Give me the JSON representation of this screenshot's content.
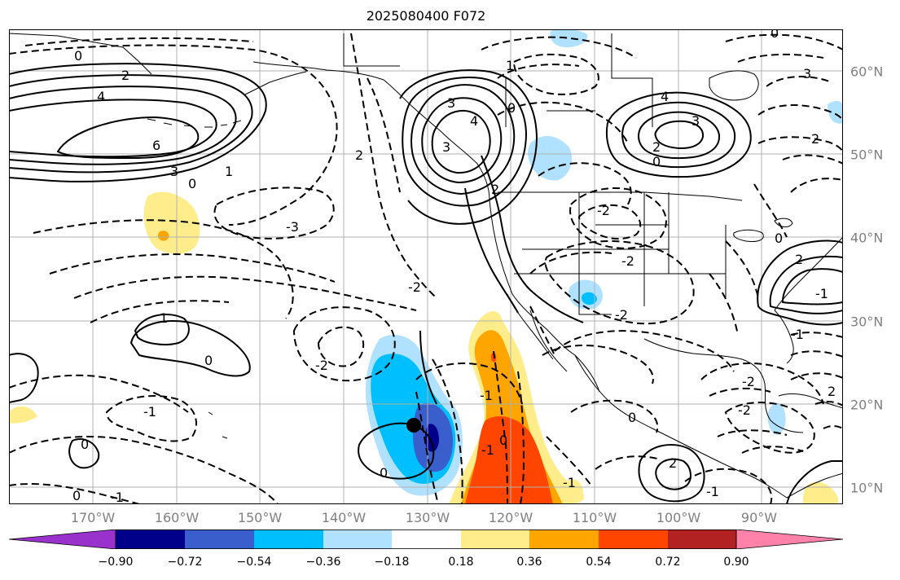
{
  "title": "2025080400 F072",
  "lon_labels": [
    "170°W",
    "160°W",
    "150°W",
    "140°W",
    "130°W",
    "120°W",
    "110°W",
    "100°W",
    "90°W"
  ],
  "lat_labels": [
    "60°N",
    "50°N",
    "40°N",
    "30°N",
    "20°N",
    "10°N"
  ],
  "colorbar": {
    "labels": [
      "−0.90",
      "−0.72",
      "−0.54",
      "−0.36",
      "−0.18",
      "0.18",
      "0.36",
      "0.54",
      "0.72",
      "0.90"
    ],
    "colors": [
      "#9932cc",
      "#00008b",
      "#3a5fcd",
      "#00bfff",
      "#b0e2ff",
      "#ffffff",
      "#ffec8b",
      "#ffa500",
      "#ff4500",
      "#b22222",
      "#ff82ab"
    ]
  },
  "fill_colors": {
    "neg_strong": "#00008b",
    "neg_mid": "#3a5fcd",
    "neg": "#00bfff",
    "neg_light": "#b0e2ff",
    "pos_light": "#ffec8b",
    "pos": "#ffa500",
    "pos_mid": "#ff4500"
  },
  "contour_labels": {
    "l1": "0",
    "l2": "2",
    "l3": "4",
    "l4": "6",
    "l5": "3",
    "l6": "0",
    "l7": "1",
    "l8": "-3",
    "l9": "2",
    "l10": "3",
    "l11": "4",
    "l12": "3",
    "l13": "0",
    "l14": "1",
    "l15": "3",
    "l16": "4",
    "l17": "2",
    "l18": "2",
    "l19": "0",
    "l20": "3",
    "l21": "2",
    "l22": "-2",
    "l23": "-2",
    "l24": "-2",
    "l25": "1",
    "l26": "0",
    "l27": "-2",
    "l28": "-1",
    "l29": "0",
    "l30": "0",
    "l31": "-2",
    "l32": "-1",
    "l33": "0",
    "l34": "2",
    "l35": "0",
    "l36": "-2",
    "l37": "0",
    "l38": "0",
    "l39": "-1",
    "l40": "-1",
    "l41": "-1",
    "l42": "-2",
    "l43": "-1",
    "l44": "-1",
    "l45": "2",
    "l46": "2",
    "l47": "0",
    "l48": "-1"
  },
  "marker": {
    "label": "storm-center",
    "lon": -130.8,
    "lat": 17.3
  }
}
